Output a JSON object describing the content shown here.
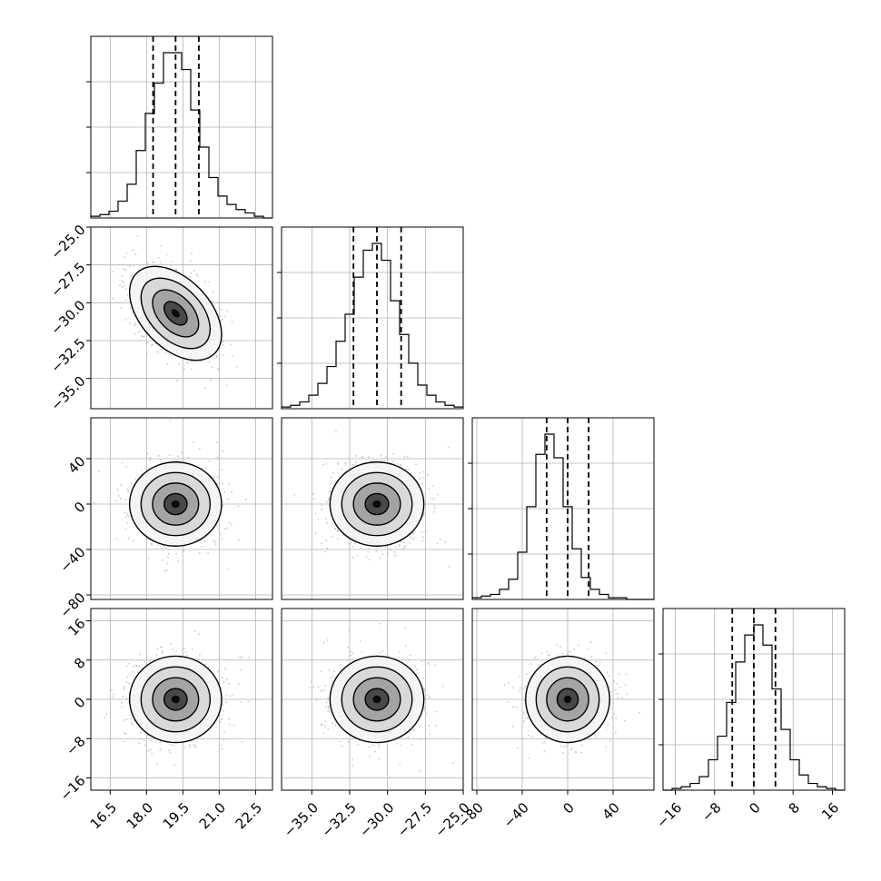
{
  "chart_data": {
    "type": "corner",
    "grid": true,
    "style": {
      "hist_color": "#000000",
      "contour_color": "#000000",
      "point_color": "#c8c8c8",
      "quantile_line": "dashed"
    },
    "params": [
      {
        "range": [
          15.7,
          23.2
        ],
        "ticks": [
          "16.5",
          "18.0",
          "19.5",
          "21.0",
          "22.5"
        ],
        "tick_values": [
          16.5,
          18.0,
          19.5,
          21.0,
          22.5
        ],
        "quantiles": [
          18.27,
          19.2,
          20.16
        ],
        "mean": 19.2,
        "sd": 0.95,
        "hist": [
          1,
          2,
          4,
          10,
          20,
          40,
          62,
          80,
          98,
          98,
          88,
          64,
          42,
          24,
          13,
          8,
          5,
          3,
          1,
          0
        ]
      },
      {
        "range": [
          -37.0,
          -25.0
        ],
        "ticks": [
          "-35.0",
          "-32.5",
          "-30.0",
          "-27.5",
          "-25.0"
        ],
        "tick_values": [
          -35.0,
          -32.5,
          -30.0,
          -27.5,
          -25.0
        ],
        "quantiles": [
          -32.25,
          -30.7,
          -29.1
        ],
        "mean": -30.7,
        "sd": 1.55,
        "hist": [
          1,
          2,
          4,
          8,
          15,
          25,
          40,
          56,
          78,
          94,
          98,
          88,
          64,
          44,
          27,
          14,
          8,
          4,
          2,
          1
        ]
      },
      {
        "range": [
          -84,
          76
        ],
        "ticks": [
          "-80",
          "-40",
          "0",
          "40"
        ],
        "tick_values": [
          -80,
          -40,
          0,
          40
        ],
        "quantiles": [
          -18.5,
          0.0,
          18.5
        ],
        "mean": 0.0,
        "sd": 18.5,
        "hist": [
          1,
          2,
          3,
          6,
          12,
          28,
          55,
          86,
          98,
          84,
          55,
          30,
          13,
          6,
          3,
          1,
          1,
          0,
          0,
          0
        ]
      },
      {
        "range": [
          -18.5,
          18.5
        ],
        "ticks": [
          "-16",
          "-8",
          "0",
          "8",
          "16"
        ],
        "tick_values": [
          -16,
          -8,
          0,
          8,
          16
        ],
        "quantiles": [
          -4.4,
          0.0,
          4.4
        ],
        "mean": 0.0,
        "sd": 4.4,
        "hist": [
          0,
          1,
          2,
          4,
          8,
          18,
          32,
          52,
          76,
          92,
          98,
          86,
          60,
          36,
          18,
          9,
          4,
          2,
          1,
          0
        ]
      }
    ],
    "correlations": [
      {
        "i": 1,
        "j": 0,
        "rho": -0.45
      },
      {
        "i": 2,
        "j": 0,
        "rho": 0.0
      },
      {
        "i": 2,
        "j": 1,
        "rho": 0.0
      },
      {
        "i": 3,
        "j": 0,
        "rho": 0.0
      },
      {
        "i": 3,
        "j": 1,
        "rho": 0.0
      },
      {
        "i": 3,
        "j": 2,
        "rho": 0.0
      }
    ]
  }
}
